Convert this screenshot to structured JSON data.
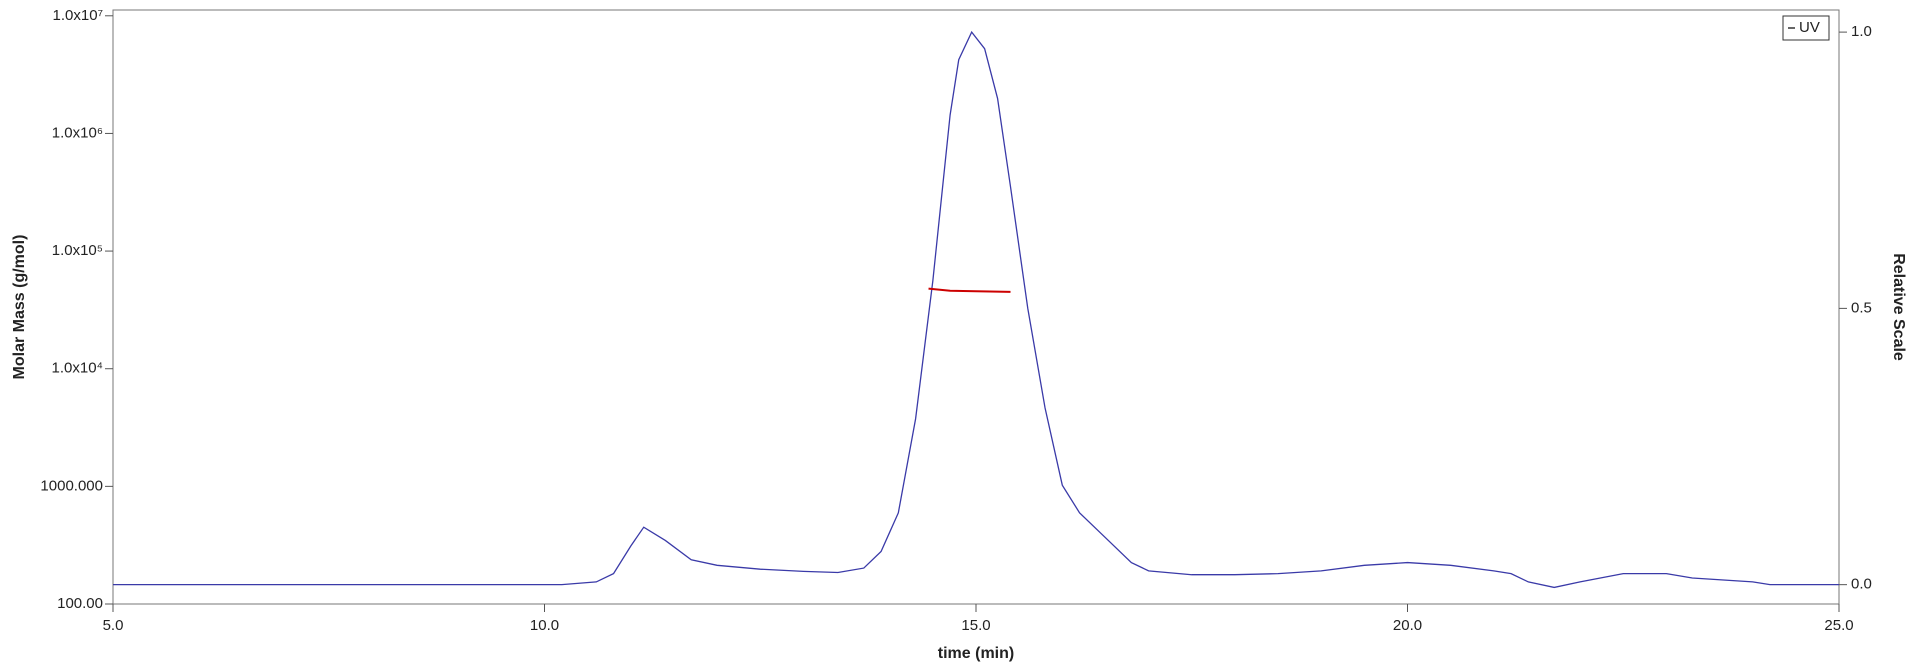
{
  "chart_data": {
    "type": "line",
    "xlabel": "time (min)",
    "ylabel": "Molar Mass (g/mol)",
    "y2label": "Relative Scale",
    "xlim": [
      5,
      25
    ],
    "xticks": [
      {
        "value": 5,
        "label": "5.0"
      },
      {
        "value": 10,
        "label": "10.0"
      },
      {
        "value": 15,
        "label": "15.0"
      },
      {
        "value": 20,
        "label": "20.0"
      },
      {
        "value": 25,
        "label": "25.0"
      }
    ],
    "ylim": [
      100,
      11200000
    ],
    "log_y": true,
    "yticks": [
      {
        "value": 100,
        "label": "100.00"
      },
      {
        "value": 1000,
        "label": "1000.000"
      },
      {
        "value": 10000,
        "label": "1.0x10⁴"
      },
      {
        "value": 100000,
        "label": "1.0x10⁵"
      },
      {
        "value": 1000000,
        "label": "1.0x10⁶"
      },
      {
        "value": 10000000,
        "label": "1.0x10⁷"
      }
    ],
    "y2lim": [
      -0.035,
      1.04
    ],
    "y2ticks": [
      {
        "value": 0,
        "label": "0.0"
      },
      {
        "value": 0.5,
        "label": "0.5"
      },
      {
        "value": 1,
        "label": "1.0"
      }
    ],
    "legend": "top-right",
    "series": [
      {
        "name": "UV",
        "color": "#3a3aa8",
        "axis": "y2",
        "x": [
          5,
          10.2,
          10.6,
          10.8,
          11.0,
          11.15,
          11.4,
          11.7,
          12.0,
          12.5,
          13.0,
          13.4,
          13.7,
          13.9,
          14.1,
          14.3,
          14.5,
          14.6,
          14.7,
          14.8,
          14.95,
          15.1,
          15.25,
          15.4,
          15.6,
          15.8,
          16.0,
          16.2,
          16.5,
          16.8,
          17.0,
          17.5,
          18.0,
          18.5,
          19.0,
          19.5,
          20.0,
          20.5,
          21.0,
          21.2,
          21.4,
          21.7,
          22.0,
          22.5,
          23.0,
          23.3,
          24.0,
          24.2,
          25.0
        ],
        "values": [
          0,
          0,
          0.005,
          0.02,
          0.07,
          0.104,
          0.08,
          0.045,
          0.035,
          0.028,
          0.024,
          0.022,
          0.03,
          0.06,
          0.13,
          0.3,
          0.55,
          0.7,
          0.85,
          0.95,
          1.0,
          0.97,
          0.88,
          0.72,
          0.5,
          0.32,
          0.18,
          0.13,
          0.085,
          0.04,
          0.025,
          0.018,
          0.018,
          0.02,
          0.025,
          0.035,
          0.04,
          0.035,
          0.025,
          0.02,
          0.005,
          -0.005,
          0.005,
          0.02,
          0.02,
          0.012,
          0.005,
          0,
          0
        ]
      },
      {
        "color": "#cc0000",
        "axis": "y",
        "x": [
          14.45,
          14.7,
          15.0,
          15.4
        ],
        "values": [
          48000,
          46000,
          45500,
          45000
        ]
      }
    ]
  }
}
